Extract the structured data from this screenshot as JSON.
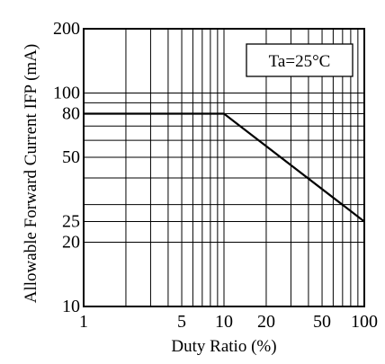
{
  "chart_data": {
    "type": "line",
    "xlabel": "Duty Ratio (%)",
    "ylabel": "Allowable Forward Current IFP (mA)",
    "x_scale": "log",
    "y_scale": "log",
    "xlim": [
      1,
      100
    ],
    "ylim": [
      10,
      200
    ],
    "grid": true,
    "annotation": "Ta=25°C",
    "annotation_position": "top-right",
    "x_ticks": [
      {
        "value": 1,
        "label": "1"
      },
      {
        "value": 5,
        "label": "5"
      },
      {
        "value": 10,
        "label": "10"
      },
      {
        "value": 20,
        "label": "20"
      },
      {
        "value": 50,
        "label": "50"
      },
      {
        "value": 100,
        "label": "100"
      }
    ],
    "y_ticks": [
      {
        "value": 10,
        "label": "10"
      },
      {
        "value": 20,
        "label": "20"
      },
      {
        "value": 25,
        "label": "25"
      },
      {
        "value": 50,
        "label": "50"
      },
      {
        "value": 80,
        "label": "80"
      },
      {
        "value": 100,
        "label": "100"
      },
      {
        "value": 200,
        "label": "200"
      }
    ],
    "x_grid": [
      2,
      3,
      4,
      5,
      6,
      7,
      8,
      9,
      10,
      20,
      30,
      40,
      50,
      60,
      70,
      80,
      90
    ],
    "y_grid": [
      20,
      25,
      30,
      40,
      50,
      60,
      70,
      80,
      90,
      100
    ],
    "series": [
      {
        "x": [
          1,
          10,
          100
        ],
        "y": [
          80,
          80,
          25
        ]
      }
    ],
    "colors": {
      "line": "#000000",
      "grid": "#000000",
      "background": "#ffffff"
    }
  }
}
